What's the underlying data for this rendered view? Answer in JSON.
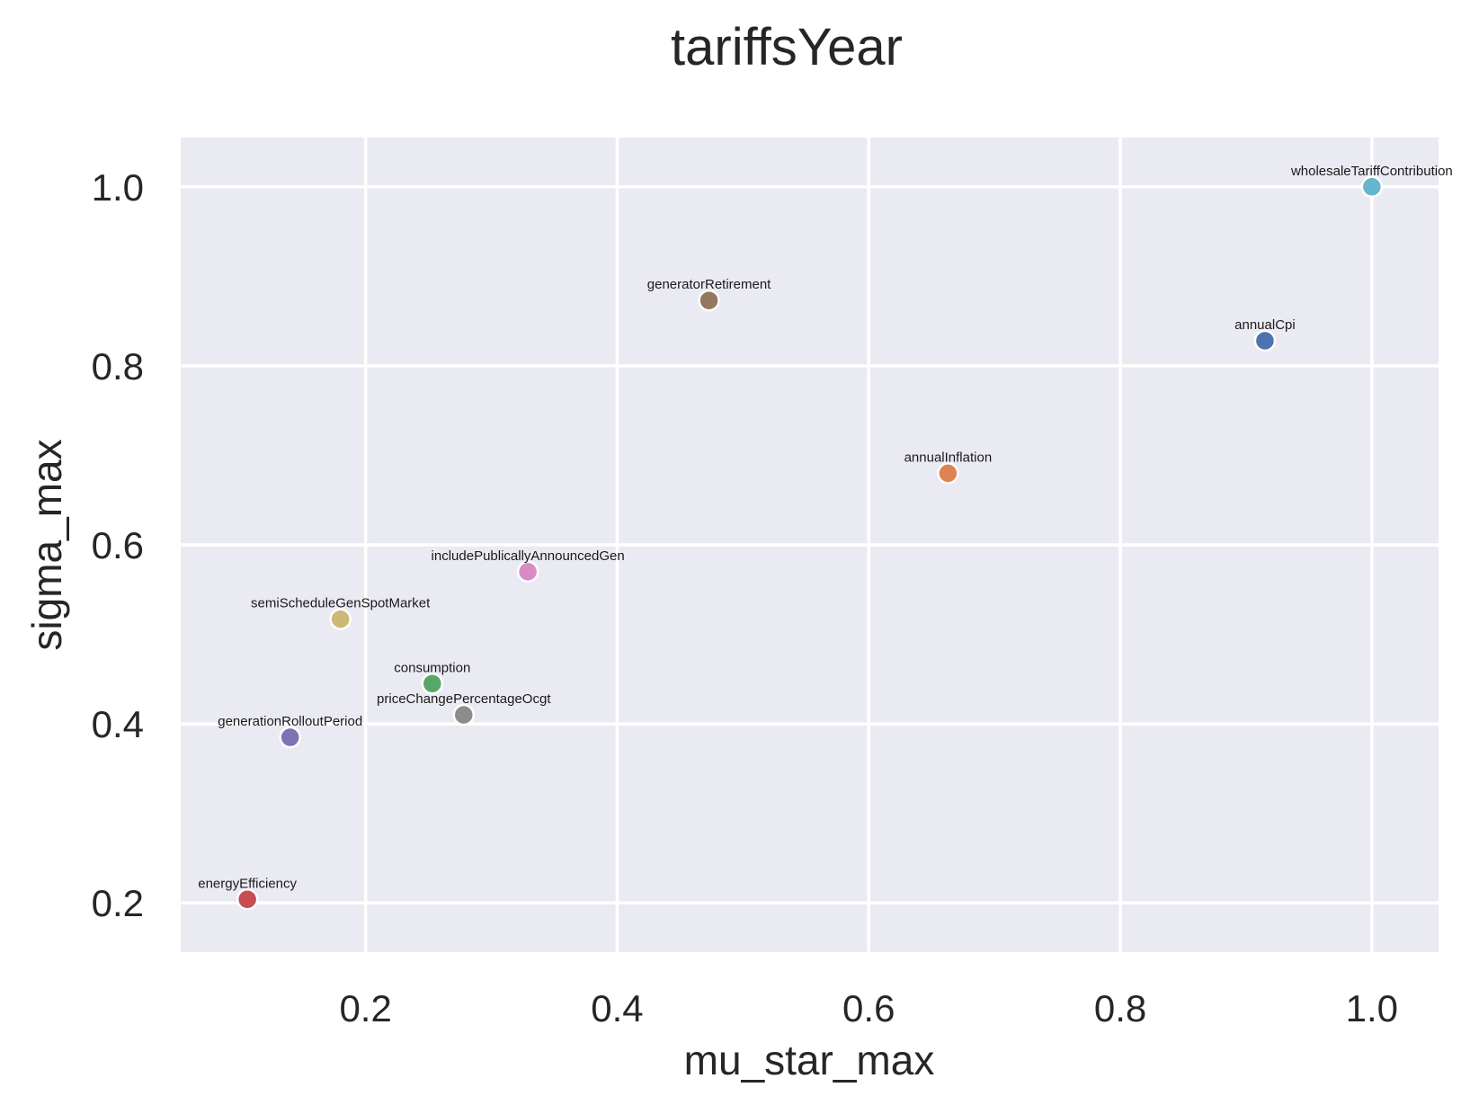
{
  "chart_data": {
    "type": "scatter",
    "title": "tariffsYear",
    "xlabel": "mu_star_max",
    "ylabel": "sigma_max",
    "xlim": [
      0.053,
      1.053
    ],
    "ylim": [
      0.145,
      1.055
    ],
    "xticks": [
      0.2,
      0.4,
      0.6,
      0.8,
      1.0
    ],
    "yticks": [
      0.2,
      0.4,
      0.6,
      0.8,
      1.0
    ],
    "xtick_labels": [
      "0.2",
      "0.4",
      "0.6",
      "0.8",
      "1.0"
    ],
    "ytick_labels": [
      "0.2",
      "0.4",
      "0.6",
      "0.8",
      "1.0"
    ],
    "grid": true,
    "background": "#EAEAF2",
    "points": [
      {
        "label": "annualCpi",
        "x": 0.915,
        "y": 0.828,
        "color": "#4C72B0"
      },
      {
        "label": "annualInflation",
        "x": 0.663,
        "y": 0.68,
        "color": "#DD8452"
      },
      {
        "label": "consumption",
        "x": 0.253,
        "y": 0.445,
        "color": "#55A868"
      },
      {
        "label": "energyEfficiency",
        "x": 0.106,
        "y": 0.204,
        "color": "#C44E52"
      },
      {
        "label": "generationRolloutPeriod",
        "x": 0.14,
        "y": 0.385,
        "color": "#8172B3"
      },
      {
        "label": "generatorRetirement",
        "x": 0.473,
        "y": 0.873,
        "color": "#937860"
      },
      {
        "label": "includePublicallyAnnouncedGen",
        "x": 0.329,
        "y": 0.57,
        "color": "#DA8BC3"
      },
      {
        "label": "priceChangePercentageOcgt",
        "x": 0.278,
        "y": 0.41,
        "color": "#8C8C8C"
      },
      {
        "label": "semiScheduleGenSpotMarket",
        "x": 0.18,
        "y": 0.517,
        "color": "#CCB974"
      },
      {
        "label": "wholesaleTariffContribution",
        "x": 1.0,
        "y": 1.0,
        "color": "#64B5CD"
      }
    ]
  }
}
